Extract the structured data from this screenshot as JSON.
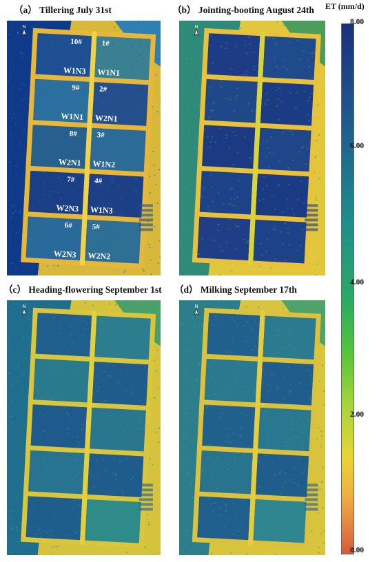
{
  "panels": [
    {
      "id": "a",
      "title": "（a） Tillering July 31st",
      "theme": "a"
    },
    {
      "id": "b",
      "title": "（b） Jointing-booting August 24th",
      "theme": "b"
    },
    {
      "id": "c",
      "title": "（c） Heading-flowering September 1st",
      "theme": "c"
    },
    {
      "id": "d",
      "title": "（d） Milking September 17th",
      "theme": "d"
    }
  ],
  "north_label": "N",
  "plot_labels_a": {
    "left_ids": [
      "10#",
      "9#",
      "8#",
      "7#",
      "6#"
    ],
    "left_treatments": [
      "W1N3",
      "W1N1",
      "W2N1",
      "W2N3",
      "W2N3"
    ],
    "right_ids": [
      "1#",
      "2#",
      "3#",
      "4#",
      "5#"
    ],
    "right_treatments": [
      "W1N1",
      "W2N1",
      "W1N2",
      "W1N3",
      "W2N2"
    ]
  },
  "colorbar": {
    "title": "ET (mm/d)",
    "ticks": [
      "8.00",
      "6.00",
      "4.00",
      "2.00",
      "0.00"
    ],
    "tick_values": [
      8,
      6,
      4,
      2,
      0
    ],
    "min": 0,
    "max": 8,
    "colors": [
      "#1b2f7c",
      "#1f8e8c",
      "#54c53b",
      "#e8d534",
      "#d35a3c"
    ]
  },
  "themes": {
    "a": {
      "bg": "#0f3a8a",
      "edge": "#2f7fb0",
      "noise": "#1e6ea0",
      "bund": "#e7b73a",
      "bund2": "#f2d24a",
      "field": [
        "#1f4f93",
        "#2b6f9e",
        "#275f8f",
        "#1a3f86",
        "#2a6a9a",
        "#3b7f93",
        "#244f8c",
        "#2c6b98",
        "#1d3f86",
        "#2e6f96"
      ],
      "outside": "#d7b83a"
    },
    "b": {
      "bg": "#2f8a7a",
      "edge": "#4e9c5c",
      "noise": "#3fa06c",
      "bund": "#e9c13a",
      "bund2": "#d8d43c",
      "field": [
        "#1e3b86",
        "#1f4889",
        "#1c3a84",
        "#1d4287",
        "#203e87",
        "#1f4a8b",
        "#1b3b85",
        "#1f4689",
        "#1a3a84",
        "#1e4287"
      ],
      "outside": "#e0c73c"
    },
    "c": {
      "bg": "#1f6e8d",
      "edge": "#4aa06a",
      "noise": "#2f8f86",
      "bund": "#d9c63c",
      "bund2": "#e3d03e",
      "field": [
        "#1f5e8d",
        "#2a7a8e",
        "#1e5a8b",
        "#287390",
        "#1e5d8c",
        "#2c7d8e",
        "#1f5c8c",
        "#2a768e",
        "#1f5b8b",
        "#2f8a8a"
      ],
      "outside": "#d5c33d"
    },
    "d": {
      "bg": "#2c7e8a",
      "edge": "#4ea36a",
      "noise": "#3a9a78",
      "bund": "#dcc23c",
      "bund2": "#e6cc3f",
      "field": [
        "#215f8d",
        "#2a7990",
        "#21608d",
        "#28748f",
        "#205f8d",
        "#2b7a8f",
        "#215d8c",
        "#2a788f",
        "#205d8c",
        "#2f8590"
      ],
      "outside": "#d8c43d"
    }
  }
}
